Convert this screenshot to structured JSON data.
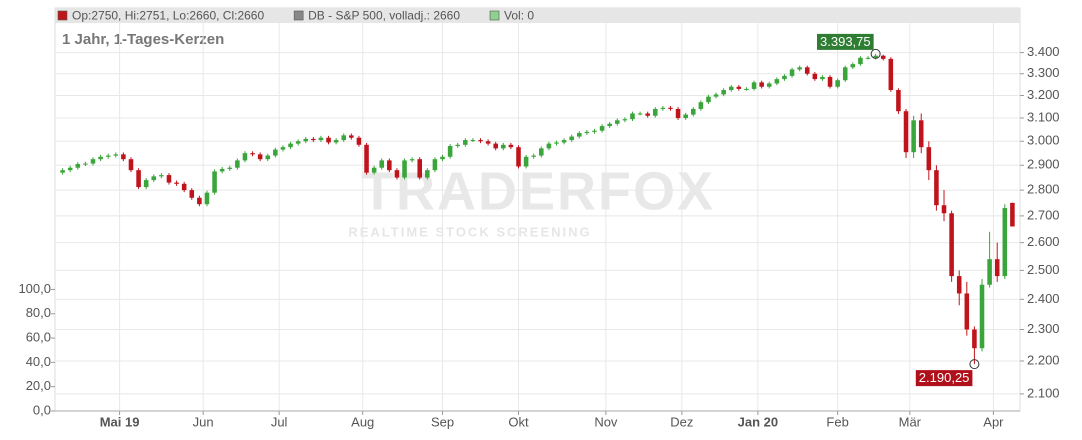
{
  "chart_data": {
    "type": "candlestick",
    "legend": [
      {
        "label": "Op:2750, Hi:2751, Lo:2660, Cl:2660",
        "color": "#c0141c"
      },
      {
        "label": "DB - S&P 500, volladj.: 2660",
        "color": "#888888"
      },
      {
        "label": "Vol: 0",
        "color": "#8fd18f"
      }
    ],
    "subtitle": "1 Jahr, 1-Tages-Kerzen",
    "watermark": {
      "title": "TRADERFOX",
      "subtitle": "REALTIME STOCK SCREENING"
    },
    "up_color": "#3aa53a",
    "down_color": "#c0141c",
    "log_scale": true,
    "grid": true,
    "xlim": [
      -1,
      126
    ],
    "xticks": [
      {
        "value": 7.5,
        "label": "Mai 19",
        "bold": true
      },
      {
        "value": 18.5,
        "label": "Jun"
      },
      {
        "value": 28.5,
        "label": "Jul"
      },
      {
        "value": 39.5,
        "label": "Aug"
      },
      {
        "value": 50,
        "label": "Sep"
      },
      {
        "value": 60,
        "label": "Okt"
      },
      {
        "value": 71.5,
        "label": "Nov"
      },
      {
        "value": 81.5,
        "label": "Dez"
      },
      {
        "value": 91.5,
        "label": "Jan 20",
        "bold": true
      },
      {
        "value": 102,
        "label": "Feb"
      },
      {
        "value": 111.5,
        "label": "Mär"
      },
      {
        "value": 122.5,
        "label": "Apr"
      }
    ],
    "ylim": [
      2050,
      3550
    ],
    "yticks": [
      {
        "value": 2100,
        "label": "2.100"
      },
      {
        "value": 2200,
        "label": "2.200"
      },
      {
        "value": 2300,
        "label": "2.300"
      },
      {
        "value": 2400,
        "label": "2.400"
      },
      {
        "value": 2500,
        "label": "2.500"
      },
      {
        "value": 2600,
        "label": "2.600"
      },
      {
        "value": 2700,
        "label": "2.700"
      },
      {
        "value": 2800,
        "label": "2.800"
      },
      {
        "value": 2900,
        "label": "2.900"
      },
      {
        "value": 3000,
        "label": "3.000"
      },
      {
        "value": 3100,
        "label": "3.100"
      },
      {
        "value": 3200,
        "label": "3.200"
      },
      {
        "value": 3300,
        "label": "3.300"
      },
      {
        "value": 3400,
        "label": "3.400"
      }
    ],
    "y2lim": [
      0,
      320
    ],
    "y2ticks": [
      {
        "value": 0,
        "label": "0,0"
      },
      {
        "value": 20,
        "label": "20,0"
      },
      {
        "value": 40,
        "label": "40,0"
      },
      {
        "value": 60,
        "label": "60,0"
      },
      {
        "value": 80,
        "label": "80,0"
      },
      {
        "value": 100,
        "label": "100,0"
      }
    ],
    "open": [
      2870,
      2880,
      2890,
      2905,
      2907,
      2925,
      2935,
      2940,
      2945,
      2925,
      2880,
      2812,
      2840,
      2855,
      2860,
      2830,
      2825,
      2800,
      2770,
      2745,
      2790,
      2875,
      2885,
      2890,
      2920,
      2950,
      2945,
      2925,
      2940,
      2965,
      2975,
      2990,
      3000,
      3010,
      3005,
      3015,
      2995,
      3005,
      3025,
      3015,
      2985,
      2870,
      2890,
      2920,
      2880,
      2850,
      2920,
      2925,
      2850,
      2880,
      2925,
      2935,
      2980,
      2985,
      3005,
      3005,
      3000,
      2990,
      2970,
      2985,
      2975,
      2895,
      2935,
      2940,
      2970,
      2990,
      2995,
      3005,
      3020,
      3035,
      3040,
      3045,
      3065,
      3075,
      3090,
      3095,
      3120,
      3120,
      3110,
      3140,
      3145,
      3140,
      3100,
      3115,
      3140,
      3170,
      3195,
      3205,
      3225,
      3240,
      3230,
      3230,
      3260,
      3240,
      3255,
      3275,
      3290,
      3320,
      3330,
      3300,
      3275,
      3285,
      3240,
      3270,
      3330,
      3345,
      3375,
      3375,
      3385,
      3370,
      3225,
      3130,
      2954,
      3090,
      2975,
      2880,
      2741,
      2710,
      2480,
      2420,
      2300,
      2240,
      2450,
      2540,
      2480,
      2750
    ],
    "high": [
      2888,
      2898,
      2913,
      2915,
      2933,
      2943,
      2948,
      2953,
      2953,
      2933,
      2888,
      2848,
      2863,
      2868,
      2868,
      2838,
      2833,
      2808,
      2778,
      2798,
      2883,
      2893,
      2898,
      2928,
      2958,
      2958,
      2953,
      2948,
      2973,
      2983,
      2998,
      3008,
      3018,
      3018,
      3023,
      3023,
      3013,
      3033,
      3033,
      3023,
      2993,
      2898,
      2928,
      2928,
      2888,
      2928,
      2933,
      2933,
      2888,
      2933,
      2943,
      2988,
      2993,
      3013,
      3013,
      3013,
      3008,
      2998,
      2993,
      2993,
      2983,
      2943,
      2948,
      2978,
      2998,
      3003,
      3013,
      3028,
      3043,
      3048,
      3053,
      3073,
      3083,
      3098,
      3103,
      3128,
      3128,
      3128,
      3148,
      3153,
      3153,
      3148,
      3123,
      3148,
      3178,
      3203,
      3213,
      3233,
      3248,
      3248,
      3238,
      3268,
      3268,
      3263,
      3283,
      3298,
      3328,
      3338,
      3338,
      3308,
      3293,
      3293,
      3278,
      3338,
      3353,
      3383,
      3383,
      3393.75,
      3390,
      3378,
      3233,
      3140,
      3110,
      3120,
      3000,
      2900,
      2800,
      2720,
      2500,
      2460,
      2310,
      2470,
      2640,
      2600,
      2745,
      2751
    ],
    "low": [
      2862,
      2872,
      2882,
      2897,
      2899,
      2917,
      2927,
      2932,
      2917,
      2872,
      2804,
      2804,
      2832,
      2847,
      2822,
      2817,
      2792,
      2762,
      2737,
      2737,
      2782,
      2867,
      2877,
      2882,
      2912,
      2937,
      2917,
      2917,
      2932,
      2957,
      2967,
      2982,
      2992,
      2997,
      2997,
      2987,
      2987,
      2997,
      3007,
      2977,
      2862,
      2862,
      2882,
      2872,
      2842,
      2842,
      2912,
      2842,
      2842,
      2872,
      2917,
      2927,
      2972,
      2977,
      2997,
      2992,
      2982,
      2962,
      2962,
      2967,
      2887,
      2887,
      2927,
      2932,
      2962,
      2982,
      2987,
      2997,
      3012,
      3027,
      3032,
      3037,
      3057,
      3067,
      3082,
      3087,
      3112,
      3102,
      3102,
      3132,
      3132,
      3092,
      3092,
      3107,
      3132,
      3162,
      3187,
      3197,
      3217,
      3222,
      3222,
      3222,
      3232,
      3232,
      3247,
      3267,
      3282,
      3312,
      3292,
      3267,
      3267,
      3232,
      3232,
      3262,
      3322,
      3337,
      3367,
      3367,
      3362,
      3217,
      3118,
      2930,
      2930,
      2950,
      2840,
      2720,
      2680,
      2460,
      2380,
      2280,
      2190.25,
      2230,
      2440,
      2460,
      2470,
      2660
    ],
    "close": [
      2880,
      2890,
      2905,
      2907,
      2925,
      2935,
      2940,
      2945,
      2925,
      2880,
      2812,
      2840,
      2855,
      2860,
      2830,
      2825,
      2800,
      2770,
      2745,
      2790,
      2875,
      2885,
      2890,
      2920,
      2950,
      2945,
      2925,
      2940,
      2965,
      2975,
      2990,
      3000,
      3010,
      3005,
      3015,
      2995,
      3005,
      3025,
      3015,
      2985,
      2870,
      2890,
      2920,
      2880,
      2850,
      2920,
      2925,
      2850,
      2880,
      2925,
      2935,
      2980,
      2985,
      3005,
      3005,
      3000,
      2990,
      2970,
      2985,
      2975,
      2895,
      2935,
      2940,
      2970,
      2990,
      2995,
      3005,
      3020,
      3035,
      3040,
      3045,
      3065,
      3075,
      3090,
      3095,
      3120,
      3120,
      3110,
      3140,
      3145,
      3140,
      3100,
      3115,
      3140,
      3170,
      3195,
      3205,
      3225,
      3240,
      3230,
      3230,
      3260,
      3240,
      3255,
      3275,
      3290,
      3320,
      3330,
      3300,
      3275,
      3285,
      3240,
      3270,
      3330,
      3345,
      3375,
      3375,
      3385,
      3370,
      3225,
      3130,
      2954,
      3090,
      2975,
      2880,
      2741,
      2710,
      2480,
      2420,
      2300,
      2240,
      2450,
      2540,
      2480,
      2730,
      2660
    ],
    "annotations": [
      {
        "x": 107,
        "y": 3393.75,
        "label": "3.393,75",
        "color": "#2e7d32",
        "side": "above"
      },
      {
        "x": 120,
        "y": 2190.25,
        "label": "2.190,25",
        "color": "#b0101a",
        "side": "below"
      }
    ]
  }
}
